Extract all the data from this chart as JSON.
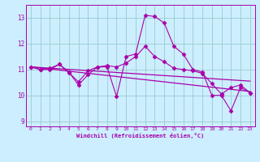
{
  "bg_color": "#cceeff",
  "grid_color": "#99cccc",
  "line_color": "#aa00aa",
  "xlabel": "Windchill (Refroidissement éolien,°C)",
  "xlim": [
    -0.5,
    23.5
  ],
  "ylim": [
    8.8,
    13.5
  ],
  "yticks": [
    9,
    10,
    11,
    12,
    13
  ],
  "xticks": [
    0,
    1,
    2,
    3,
    4,
    5,
    6,
    7,
    8,
    9,
    10,
    11,
    12,
    13,
    14,
    15,
    16,
    17,
    18,
    19,
    20,
    21,
    22,
    23
  ],
  "series": [
    {
      "x": [
        0,
        1,
        2,
        3,
        4,
        5,
        6,
        7,
        8,
        9,
        10,
        11,
        12,
        13,
        14,
        15,
        16,
        17,
        18,
        19,
        20,
        21,
        22,
        23
      ],
      "y": [
        11.1,
        11.0,
        11.0,
        11.2,
        10.9,
        10.4,
        10.8,
        11.1,
        11.1,
        9.95,
        11.5,
        11.6,
        13.1,
        13.05,
        12.8,
        11.9,
        11.6,
        11.0,
        10.9,
        10.0,
        10.0,
        9.4,
        10.3,
        10.1
      ],
      "marker": "D",
      "markersize": 2.5,
      "linewidth": 0.8
    },
    {
      "x": [
        0,
        1,
        2,
        3,
        4,
        5,
        6,
        7,
        8,
        9,
        10,
        11,
        12,
        13,
        14,
        15,
        16,
        17,
        18,
        19,
        20,
        21,
        22,
        23
      ],
      "y": [
        11.1,
        11.0,
        11.05,
        11.2,
        10.88,
        10.52,
        10.95,
        11.1,
        11.15,
        11.1,
        11.25,
        11.5,
        11.9,
        11.5,
        11.3,
        11.05,
        11.0,
        10.95,
        10.85,
        10.45,
        10.05,
        10.3,
        10.4,
        10.1
      ],
      "marker": "D",
      "markersize": 2.5,
      "linewidth": 0.8
    },
    {
      "x": [
        0,
        23
      ],
      "y": [
        11.1,
        10.15
      ],
      "marker": null,
      "markersize": 0,
      "linewidth": 0.9
    },
    {
      "x": [
        0,
        23
      ],
      "y": [
        11.1,
        10.55
      ],
      "marker": null,
      "markersize": 0,
      "linewidth": 0.9
    }
  ]
}
